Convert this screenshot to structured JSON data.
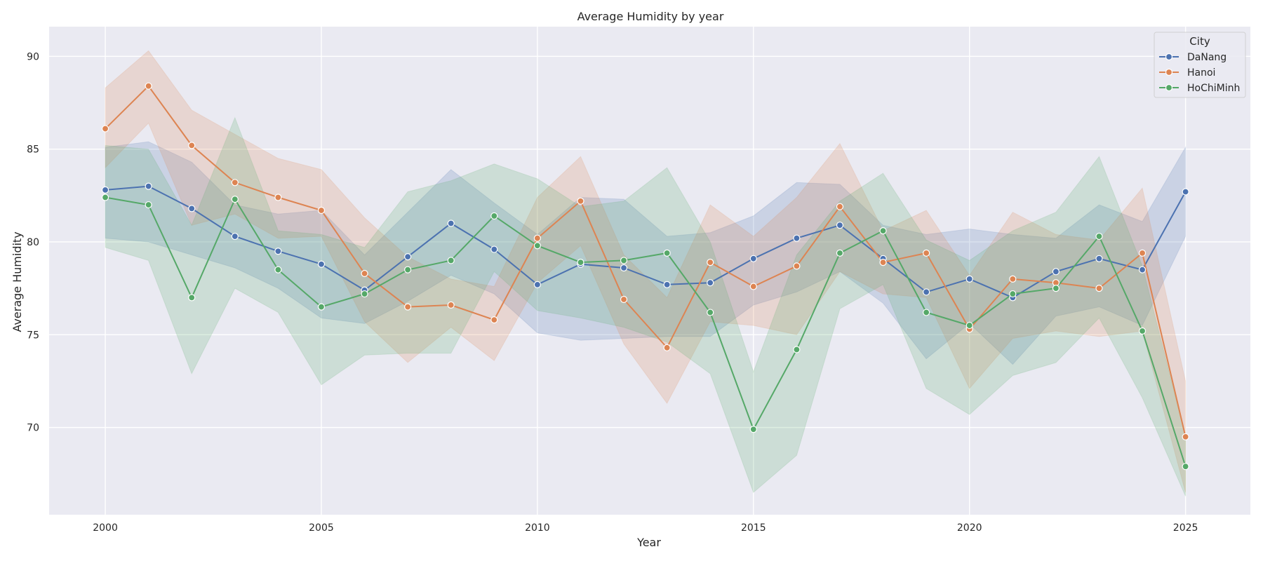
{
  "chart_data": {
    "type": "line",
    "title": "Average Humidity by year",
    "xlabel": "Year",
    "ylabel": "Average Humidity",
    "xlim": [
      1998.7,
      2026.5
    ],
    "ylim": [
      65.3,
      91.6
    ],
    "xticks": [
      2000,
      2005,
      2010,
      2015,
      2020,
      2025
    ],
    "yticks": [
      70,
      75,
      80,
      85,
      90
    ],
    "grid": true,
    "legend": {
      "title": "City",
      "placement": "top-right"
    },
    "x": [
      2000,
      2001,
      2002,
      2003,
      2004,
      2005,
      2006,
      2007,
      2008,
      2009,
      2010,
      2011,
      2012,
      2013,
      2014,
      2015,
      2016,
      2017,
      2018,
      2019,
      2020,
      2021,
      2022,
      2023,
      2024,
      2025
    ],
    "series": [
      {
        "name": "DaNang",
        "color": "#4c72b0",
        "values": [
          82.8,
          83.0,
          81.8,
          80.3,
          79.5,
          78.8,
          77.4,
          79.2,
          81.0,
          79.6,
          77.7,
          78.8,
          78.6,
          77.7,
          77.8,
          79.1,
          80.2,
          80.9,
          79.1,
          77.3,
          78.0,
          77.0,
          78.4,
          79.1,
          78.5,
          82.7
        ],
        "ci_upper": [
          85.1,
          85.4,
          84.3,
          82.0,
          81.5,
          81.7,
          79.3,
          81.6,
          83.9,
          82.1,
          80.4,
          82.4,
          82.3,
          80.3,
          80.5,
          81.4,
          83.2,
          83.1,
          80.9,
          80.4,
          80.7,
          80.4,
          80.2,
          82.0,
          81.1,
          85.1
        ],
        "ci_lower": [
          80.2,
          80.0,
          79.3,
          78.6,
          77.5,
          75.9,
          75.6,
          76.8,
          78.2,
          77.2,
          75.1,
          74.7,
          74.8,
          74.9,
          74.9,
          76.6,
          77.3,
          78.4,
          76.7,
          73.7,
          75.6,
          73.4,
          76.0,
          76.5,
          75.5,
          80.3
        ]
      },
      {
        "name": "Hanoi",
        "color": "#dd8452",
        "values": [
          86.1,
          88.4,
          85.2,
          83.2,
          82.4,
          81.7,
          78.3,
          76.5,
          76.6,
          75.8,
          80.2,
          82.2,
          76.9,
          74.3,
          78.9,
          77.6,
          78.7,
          81.9,
          78.9,
          79.4,
          75.3,
          78.0,
          77.8,
          77.5,
          79.4,
          69.5
        ],
        "ci_upper": [
          88.3,
          90.3,
          87.1,
          85.8,
          84.5,
          83.9,
          81.3,
          79.2,
          78.0,
          77.6,
          82.4,
          84.6,
          79.3,
          77.0,
          82.0,
          80.3,
          82.4,
          85.3,
          80.6,
          81.7,
          78.2,
          81.6,
          80.4,
          80.1,
          82.9,
          72.5
        ],
        "ci_lower": [
          84.0,
          86.4,
          80.9,
          81.5,
          80.2,
          80.3,
          75.7,
          73.5,
          75.4,
          73.6,
          77.8,
          79.8,
          74.5,
          71.3,
          75.7,
          75.5,
          75.0,
          78.4,
          77.2,
          77.0,
          72.1,
          74.8,
          75.2,
          74.9,
          75.2,
          66.5
        ]
      },
      {
        "name": "HoChiMinh",
        "color": "#55a868",
        "values": [
          82.4,
          82.0,
          77.0,
          82.3,
          78.5,
          76.5,
          77.2,
          78.5,
          79.0,
          81.4,
          79.8,
          78.9,
          79.0,
          79.4,
          76.2,
          69.9,
          74.2,
          79.4,
          80.6,
          76.2,
          75.5,
          77.2,
          77.5,
          80.3,
          75.2,
          67.9
        ],
        "ci_upper": [
          85.2,
          85.0,
          80.9,
          86.7,
          80.6,
          80.4,
          79.7,
          82.7,
          83.3,
          84.2,
          83.4,
          81.9,
          82.2,
          84.0,
          80.0,
          73.0,
          79.3,
          82.2,
          83.7,
          80.1,
          79.0,
          80.6,
          81.6,
          84.6,
          78.7,
          69.5
        ],
        "ci_lower": [
          79.7,
          79.0,
          72.9,
          77.5,
          76.2,
          72.3,
          73.9,
          74.0,
          74.0,
          78.4,
          76.3,
          75.9,
          75.4,
          74.6,
          72.9,
          66.5,
          68.5,
          76.4,
          77.7,
          72.1,
          70.7,
          72.8,
          73.5,
          75.9,
          71.6,
          66.3
        ]
      }
    ]
  }
}
